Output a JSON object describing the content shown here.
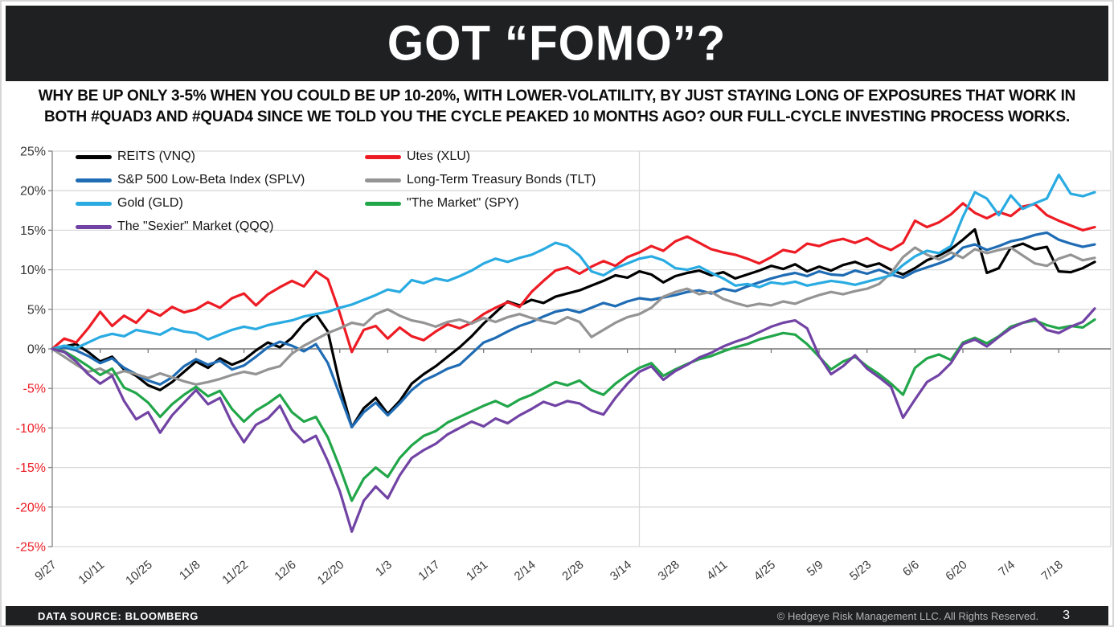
{
  "header": {
    "title": "GOT “FOMO”?",
    "subtitle_line1": "WHY BE UP ONLY 3-5% WHEN YOU COULD BE UP 10-20%, WITH LOWER-VOLATILITY, BY JUST STAYING LONG OF EXPOSURES THAT WORK IN",
    "subtitle_line2": "BOTH #QUAD3 AND #QUAD4 SINCE WE TOLD YOU THE CYCLE PEAKED 10 MONTHS AGO? OUR FULL-CYCLE INVESTING PROCESS WORKS."
  },
  "footer": {
    "data_source": "DATA SOURCE: BLOOMBERG",
    "copyright": "© Hedgeye Risk Management LLC. All Rights Reserved.",
    "page_number": "3"
  },
  "colors": {
    "title_bar_bg": "#1F2022",
    "footer_bg": "#1F2022",
    "grid": "#D9D9D9",
    "axis": "#8C8C8C",
    "zero_axis": "#737373",
    "tick_label_positive": "#383838",
    "tick_label_negative": "#ED1C24"
  },
  "chart_data": {
    "type": "line",
    "title": "GOT “FOMO”?",
    "xlabel": "",
    "ylabel": "",
    "ylim": [
      -25,
      25
    ],
    "yticks": [
      25,
      20,
      15,
      10,
      5,
      0,
      -5,
      -10,
      -15,
      -20,
      -25
    ],
    "ytick_format": "percent",
    "grid": "horizontal",
    "legend_position": "top-left-two-columns",
    "vertical_gridline_index": 49,
    "x_labels": [
      "9/27",
      "10/11",
      "10/25",
      "11/8",
      "11/22",
      "12/6",
      "12/20",
      "1/3",
      "1/17",
      "1/31",
      "2/14",
      "2/28",
      "3/14",
      "3/28",
      "4/11",
      "4/25",
      "5/9",
      "5/23",
      "6/6",
      "6/20",
      "7/4",
      "7/18"
    ],
    "x_label_every_n_points": 4,
    "series": [
      {
        "name": "REITS (VNQ)",
        "color": "#000000",
        "values": [
          0,
          0.3,
          0.6,
          -0.4,
          -1.6,
          -1.0,
          -2.6,
          -3.4,
          -4.6,
          -5.2,
          -4.2,
          -2.9,
          -1.6,
          -2.4,
          -1.2,
          -2.0,
          -1.4,
          -0.2,
          0.8,
          0.2,
          1.4,
          3.2,
          4.4,
          2.2,
          -4.5,
          -9.9,
          -7.5,
          -6.2,
          -8.2,
          -6.6,
          -4.4,
          -3.2,
          -2.2,
          -1.0,
          0.2,
          1.6,
          3.2,
          4.6,
          6.0,
          5.5,
          6.2,
          5.8,
          6.6,
          7.0,
          7.4,
          8.0,
          8.6,
          9.3,
          9.0,
          9.8,
          9.4,
          8.4,
          9.2,
          9.6,
          9.9,
          9.3,
          9.7,
          8.9,
          9.4,
          9.9,
          10.5,
          10.1,
          10.7,
          9.8,
          10.4,
          9.9,
          10.6,
          11.0,
          10.4,
          10.8,
          10.0,
          9.4,
          10.2,
          11.2,
          11.8,
          12.6,
          13.8,
          15.1,
          9.6,
          10.2,
          12.8,
          13.3,
          12.6,
          12.9,
          9.8,
          9.7,
          10.2,
          11.0
        ]
      },
      {
        "name": "Utes (XLU)",
        "color": "#ED1C24",
        "values": [
          0,
          1.3,
          0.8,
          2.6,
          4.7,
          2.9,
          4.2,
          3.3,
          4.9,
          4.2,
          5.3,
          4.6,
          5.0,
          5.9,
          5.2,
          6.4,
          7.0,
          5.5,
          6.9,
          7.8,
          8.6,
          7.9,
          9.8,
          8.8,
          4.5,
          -0.4,
          2.4,
          2.9,
          1.3,
          2.7,
          1.6,
          1.1,
          2.2,
          3.1,
          2.6,
          3.3,
          4.4,
          5.2,
          5.9,
          5.3,
          7.2,
          8.6,
          9.9,
          10.3,
          9.5,
          10.4,
          11.1,
          10.5,
          11.6,
          12.2,
          13.0,
          12.4,
          13.6,
          14.2,
          13.4,
          12.6,
          12.2,
          11.9,
          11.4,
          10.8,
          11.6,
          12.5,
          12.2,
          13.3,
          13.0,
          13.6,
          13.9,
          13.4,
          14.0,
          13.1,
          12.5,
          13.4,
          16.2,
          15.4,
          16.0,
          17.0,
          18.4,
          17.2,
          16.5,
          17.3,
          16.8,
          18.0,
          18.3,
          16.9,
          16.2,
          15.6,
          15.0,
          15.4
        ]
      },
      {
        "name": "S&P 500 Low-Beta Index (SPLV)",
        "color": "#1F6CB4",
        "values": [
          0,
          0.2,
          -0.2,
          -0.9,
          -1.8,
          -1.2,
          -2.4,
          -3.2,
          -4.0,
          -4.5,
          -3.6,
          -2.2,
          -1.3,
          -2.0,
          -1.5,
          -2.6,
          -2.1,
          -1.0,
          0.2,
          0.9,
          0.4,
          -0.3,
          0.6,
          -1.8,
          -5.8,
          -9.9,
          -8.0,
          -6.8,
          -8.4,
          -6.9,
          -5.2,
          -4.0,
          -3.3,
          -2.5,
          -2.0,
          -0.6,
          0.8,
          1.4,
          2.2,
          2.9,
          3.4,
          4.1,
          4.7,
          5.0,
          4.6,
          5.2,
          5.8,
          5.4,
          6.0,
          6.4,
          6.2,
          6.5,
          6.8,
          7.2,
          7.4,
          7.0,
          7.6,
          7.3,
          7.9,
          8.4,
          8.9,
          9.3,
          9.6,
          9.2,
          9.8,
          9.4,
          9.3,
          9.9,
          9.5,
          10.0,
          9.4,
          9.0,
          9.8,
          10.3,
          10.8,
          11.4,
          12.8,
          13.2,
          12.5,
          13.0,
          13.6,
          13.9,
          14.4,
          14.7,
          13.8,
          13.3,
          12.9,
          13.2
        ]
      },
      {
        "name": "Long-Term Treasury Bonds (TLT)",
        "color": "#949494",
        "values": [
          0,
          -1.0,
          -2.0,
          -2.9,
          -2.5,
          -3.3,
          -2.8,
          -3.2,
          -3.7,
          -3.1,
          -3.6,
          -4.1,
          -4.5,
          -4.2,
          -3.8,
          -3.3,
          -2.9,
          -3.2,
          -2.6,
          -2.2,
          -0.6,
          0.4,
          1.2,
          2.0,
          2.6,
          3.3,
          3.0,
          4.4,
          5.0,
          4.2,
          3.6,
          3.3,
          2.8,
          3.4,
          3.7,
          3.2,
          3.9,
          3.4,
          4.0,
          4.4,
          3.9,
          3.5,
          3.2,
          4.0,
          3.4,
          1.5,
          2.4,
          3.3,
          4.0,
          4.4,
          5.2,
          6.6,
          7.2,
          7.6,
          6.9,
          7.2,
          6.3,
          5.8,
          5.4,
          5.7,
          5.5,
          6.0,
          5.7,
          6.3,
          6.8,
          7.2,
          6.9,
          7.3,
          7.6,
          8.2,
          9.6,
          11.6,
          12.8,
          11.9,
          11.3,
          12.2,
          11.5,
          12.6,
          12.1,
          12.5,
          12.8,
          11.8,
          10.8,
          10.5,
          11.4,
          11.9,
          11.2,
          11.5
        ]
      },
      {
        "name": "Gold (GLD)",
        "color": "#29ABE2",
        "values": [
          0,
          0.4,
          0.1,
          0.8,
          1.5,
          1.9,
          1.6,
          2.4,
          2.1,
          1.8,
          2.6,
          2.2,
          2.0,
          1.2,
          1.8,
          2.4,
          2.8,
          2.5,
          3.0,
          3.3,
          3.6,
          4.1,
          4.4,
          4.7,
          5.2,
          5.6,
          6.2,
          6.8,
          7.5,
          7.2,
          8.7,
          8.3,
          8.9,
          8.6,
          9.2,
          9.9,
          10.8,
          11.4,
          11.0,
          11.5,
          11.9,
          12.6,
          13.4,
          13.0,
          11.8,
          9.8,
          9.3,
          10.2,
          10.8,
          11.4,
          11.7,
          11.2,
          10.2,
          10.0,
          10.4,
          9.6,
          8.9,
          8.0,
          8.2,
          7.8,
          8.4,
          8.2,
          8.5,
          8.0,
          8.3,
          8.6,
          8.4,
          8.1,
          8.5,
          8.9,
          9.3,
          10.6,
          11.7,
          12.4,
          12.1,
          13.0,
          16.7,
          19.8,
          19.0,
          16.9,
          19.4,
          17.7,
          18.4,
          19.0,
          22.0,
          19.6,
          19.3,
          19.8
        ]
      },
      {
        "name": "\"The Market\" (SPY)",
        "color": "#21A649",
        "values": [
          0,
          -0.3,
          -1.2,
          -2.2,
          -3.3,
          -2.5,
          -4.9,
          -5.6,
          -6.8,
          -8.6,
          -7.0,
          -5.8,
          -4.8,
          -6.0,
          -5.3,
          -7.6,
          -9.2,
          -7.8,
          -6.9,
          -5.8,
          -8.0,
          -9.2,
          -8.6,
          -11.2,
          -15.0,
          -19.2,
          -16.4,
          -15.0,
          -16.2,
          -13.8,
          -12.2,
          -11.0,
          -10.4,
          -9.3,
          -8.6,
          -7.9,
          -7.2,
          -6.6,
          -7.3,
          -6.4,
          -5.8,
          -5.0,
          -4.2,
          -4.6,
          -4.0,
          -5.2,
          -5.8,
          -4.4,
          -3.3,
          -2.4,
          -1.8,
          -3.4,
          -2.6,
          -1.9,
          -1.3,
          -0.9,
          -0.3,
          0.2,
          0.6,
          1.2,
          1.6,
          2.0,
          1.8,
          0.6,
          -1.0,
          -2.6,
          -1.6,
          -1.0,
          -2.2,
          -3.2,
          -4.4,
          -5.8,
          -2.4,
          -1.2,
          -0.7,
          -1.4,
          0.8,
          1.4,
          0.7,
          1.6,
          2.8,
          3.3,
          3.6,
          3.0,
          2.6,
          2.9,
          2.7,
          3.7
        ]
      },
      {
        "name": "The \"Sexier\" Market (QQQ)",
        "color": "#7143A4",
        "values": [
          0,
          -0.4,
          -1.6,
          -3.2,
          -4.4,
          -3.4,
          -6.6,
          -8.9,
          -8.0,
          -10.6,
          -8.4,
          -6.8,
          -5.2,
          -7.0,
          -6.2,
          -9.4,
          -11.8,
          -9.6,
          -8.8,
          -7.2,
          -10.2,
          -11.8,
          -11.0,
          -14.2,
          -18.0,
          -23.1,
          -19.2,
          -17.4,
          -18.9,
          -16.0,
          -13.8,
          -12.8,
          -12.0,
          -10.8,
          -10.0,
          -9.2,
          -9.8,
          -8.8,
          -9.4,
          -8.4,
          -7.6,
          -6.7,
          -7.2,
          -6.6,
          -6.9,
          -7.8,
          -8.3,
          -6.2,
          -4.4,
          -2.9,
          -2.2,
          -3.9,
          -2.8,
          -2.0,
          -1.1,
          -0.5,
          0.3,
          0.9,
          1.4,
          2.1,
          2.8,
          3.3,
          3.6,
          2.6,
          -0.9,
          -3.2,
          -2.2,
          -0.8,
          -2.5,
          -3.6,
          -4.8,
          -8.7,
          -6.4,
          -4.2,
          -3.3,
          -1.8,
          0.6,
          1.2,
          0.3,
          1.5,
          2.6,
          3.3,
          3.8,
          2.4,
          2.0,
          2.8,
          3.4,
          5.1
        ]
      }
    ]
  }
}
